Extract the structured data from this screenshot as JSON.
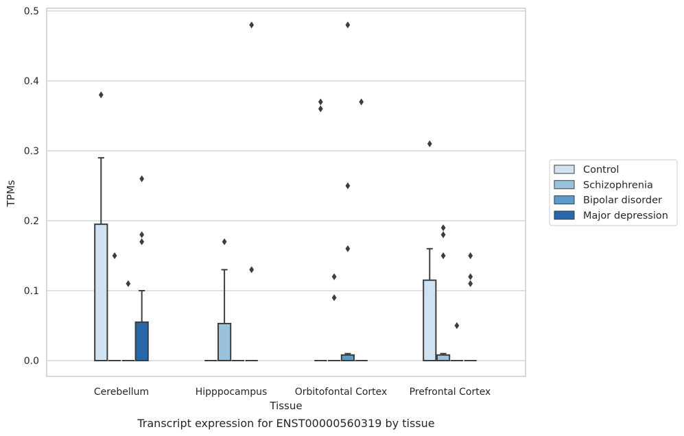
{
  "chart_data": {
    "type": "box",
    "caption": "Transcript expression for ENST00000560319 by tissue",
    "xlabel": "Tissue",
    "ylabel": "TPMs",
    "ylim": [
      -0.023,
      0.505
    ],
    "yticks": [
      "0.0",
      "0.1",
      "0.2",
      "0.3",
      "0.4",
      "0.5"
    ],
    "ytick_values": [
      0,
      0.1,
      0.2,
      0.3,
      0.4,
      0.5
    ],
    "grid": true,
    "legend_placement": "right",
    "categories": [
      "Cerebellum",
      "Hipppocampus",
      "Orbitofontal Cortex",
      "Prefrontal Cortex"
    ],
    "series": [
      {
        "name": "Control",
        "color": "#d1e2f2",
        "boxes": [
          {
            "q1": 0,
            "median": 0,
            "q3": 0.195,
            "whisker_low": 0,
            "whisker_high": 0.29,
            "outliers": [
              0.38
            ]
          },
          {
            "q1": 0,
            "median": 0,
            "q3": 0,
            "whisker_low": 0,
            "whisker_high": 0,
            "outliers": []
          },
          {
            "q1": 0,
            "median": 0,
            "q3": 0,
            "whisker_low": 0,
            "whisker_high": 0,
            "outliers": [
              0.37,
              0.36
            ]
          },
          {
            "q1": 0,
            "median": 0,
            "q3": 0.115,
            "whisker_low": 0,
            "whisker_high": 0.16,
            "outliers": [
              0.31
            ]
          }
        ]
      },
      {
        "name": "Schizophrenia",
        "color": "#9ac2dd",
        "boxes": [
          {
            "q1": 0,
            "median": 0,
            "q3": 0,
            "whisker_low": 0,
            "whisker_high": 0,
            "outliers": [
              0.15
            ]
          },
          {
            "q1": 0,
            "median": 0,
            "q3": 0.053,
            "whisker_low": 0,
            "whisker_high": 0.13,
            "outliers": [
              0.17
            ]
          },
          {
            "q1": 0,
            "median": 0,
            "q3": 0,
            "whisker_low": 0,
            "whisker_high": 0,
            "outliers": [
              0.12,
              0.09
            ]
          },
          {
            "q1": 0,
            "median": 0,
            "q3": 0.008,
            "whisker_low": 0,
            "whisker_high": 0.01,
            "outliers": [
              0.19,
              0.18,
              0.15
            ]
          }
        ]
      },
      {
        "name": "Bipolar disorder",
        "color": "#5b9bc9",
        "boxes": [
          {
            "q1": 0,
            "median": 0,
            "q3": 0,
            "whisker_low": 0,
            "whisker_high": 0,
            "outliers": [
              0.11
            ]
          },
          {
            "q1": 0,
            "median": 0,
            "q3": 0,
            "whisker_low": 0,
            "whisker_high": 0,
            "outliers": []
          },
          {
            "q1": 0,
            "median": 0,
            "q3": 0.008,
            "whisker_low": 0,
            "whisker_high": 0.01,
            "outliers": [
              0.48,
              0.25,
              0.16
            ]
          },
          {
            "q1": 0,
            "median": 0,
            "q3": 0,
            "whisker_low": 0,
            "whisker_high": 0,
            "outliers": [
              0.05
            ]
          }
        ]
      },
      {
        "name": "Major depression",
        "color": "#2767a8",
        "boxes": [
          {
            "q1": 0,
            "median": 0,
            "q3": 0.055,
            "whisker_low": 0,
            "whisker_high": 0.1,
            "outliers": [
              0.26,
              0.18,
              0.17
            ]
          },
          {
            "q1": 0,
            "median": 0,
            "q3": 0,
            "whisker_low": 0,
            "whisker_high": 0,
            "outliers": [
              0.48,
              0.13
            ]
          },
          {
            "q1": 0,
            "median": 0,
            "q3": 0,
            "whisker_low": 0,
            "whisker_high": 0,
            "outliers": [
              0.37
            ]
          },
          {
            "q1": 0,
            "median": 0,
            "q3": 0,
            "whisker_low": 0,
            "whisker_high": 0,
            "outliers": [
              0.15,
              0.12,
              0.11
            ]
          }
        ]
      }
    ]
  }
}
